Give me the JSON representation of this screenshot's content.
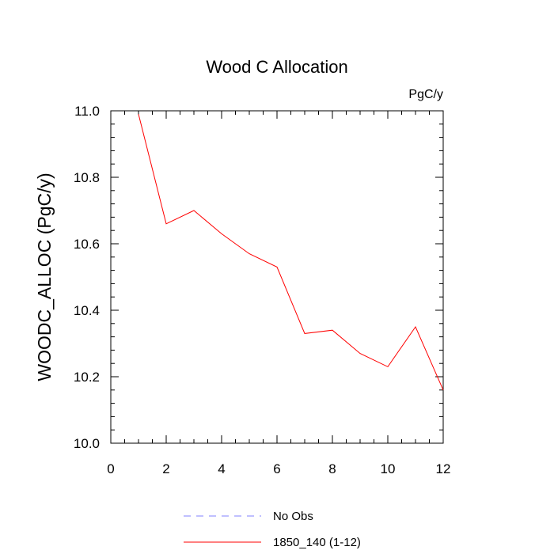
{
  "chart_data": {
    "type": "line",
    "title": "Wood C Allocation",
    "units_label": "PgC/y",
    "xlabel": "",
    "ylabel": "WOODC_ALLOC  (PgC/y)",
    "xlim": [
      0,
      12
    ],
    "ylim": [
      10.0,
      11.0
    ],
    "x_ticks": [
      0,
      2,
      4,
      6,
      8,
      10,
      12
    ],
    "y_ticks": [
      "10.0",
      "10.2",
      "10.4",
      "10.6",
      "10.8",
      "11.0"
    ],
    "grid": false,
    "legend_position": "bottom-center",
    "legend": [
      {
        "name": "No Obs",
        "color": "#8080ff",
        "style": "dashed"
      },
      {
        "name": "1850_140 (1-12)",
        "color": "#ff0000",
        "style": "solid"
      }
    ],
    "series": [
      {
        "name": "1850_140 (1-12)",
        "color": "#ff0000",
        "x": [
          1,
          2,
          3,
          4,
          5,
          6,
          7,
          8,
          9,
          10,
          11,
          12
        ],
        "values": [
          10.99,
          10.66,
          10.7,
          10.63,
          10.57,
          10.53,
          10.33,
          10.34,
          10.27,
          10.23,
          10.35,
          10.16
        ]
      }
    ]
  }
}
